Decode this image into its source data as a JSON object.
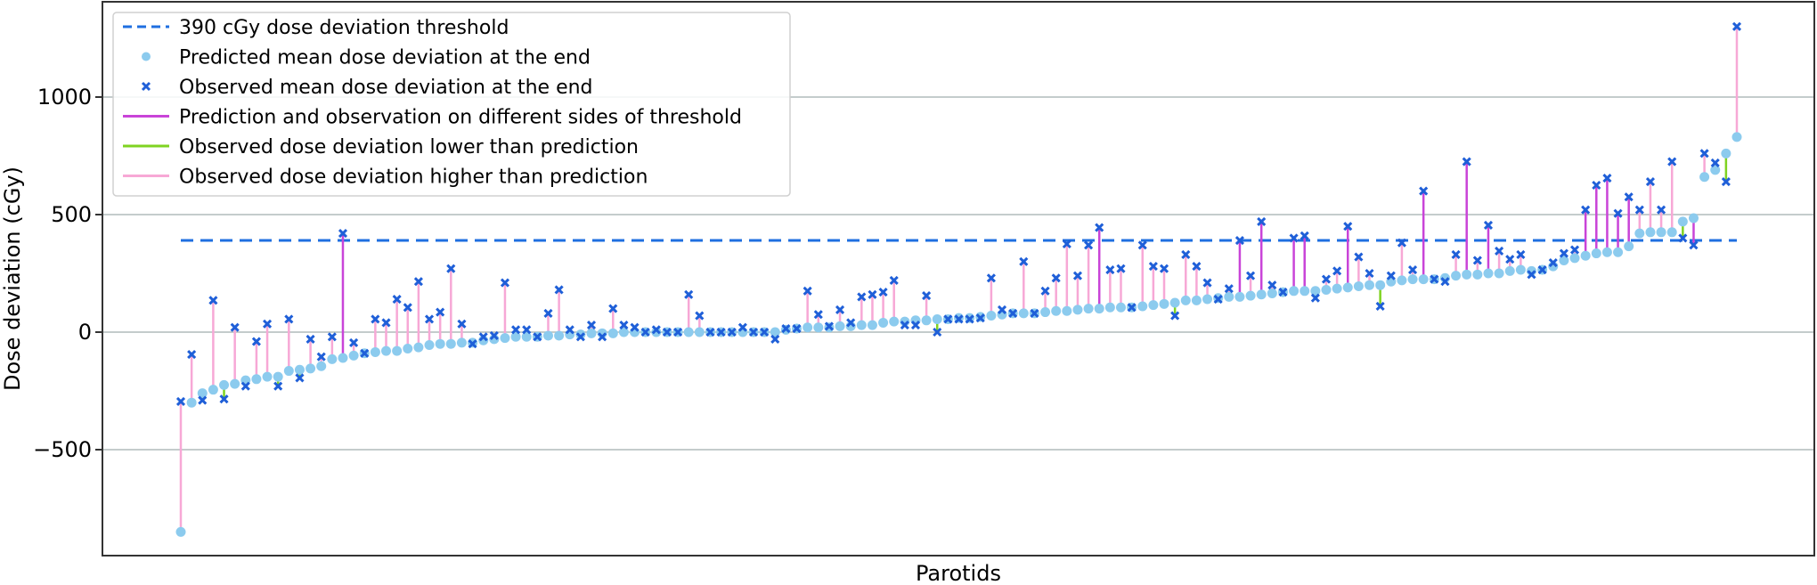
{
  "chart_data": {
    "type": "scatter",
    "title": "",
    "xlabel": "Parotids",
    "ylabel": "Dose deviation (cGy)",
    "ylim": [
      -951,
      1405
    ],
    "yticks": [
      -500,
      0,
      500,
      1000
    ],
    "ytick_labels": [
      "−500",
      "0",
      "500",
      "1000"
    ],
    "grid": "horizontal",
    "legend_position": "upper left",
    "threshold": 390,
    "colors": {
      "threshold": "#1f6fe0",
      "predicted": "#8ccbee",
      "observed": "#1f5fd8",
      "different_sides": "#c944d8",
      "lower": "#7fd321",
      "higher": "#f7a8d6",
      "grid": "#b0bcbc",
      "axis": "#333333"
    },
    "legend": [
      {
        "key": "threshold",
        "label": "390 cGy dose deviation threshold",
        "style": "dashed-line"
      },
      {
        "key": "predicted",
        "label": "Predicted mean dose deviation at the end",
        "style": "dot"
      },
      {
        "key": "observed",
        "label": "Observed mean dose deviation at the end",
        "style": "x"
      },
      {
        "key": "different_sides",
        "label": "Prediction and observation on different sides of threshold",
        "style": "line"
      },
      {
        "key": "lower",
        "label": "Observed dose deviation lower than prediction",
        "style": "line"
      },
      {
        "key": "higher",
        "label": "Observed dose deviation higher than prediction",
        "style": "line"
      }
    ],
    "series": [
      {
        "name": "Predicted mean dose deviation at the end",
        "values": [
          -850,
          -300,
          -260,
          -245,
          -225,
          -220,
          -205,
          -200,
          -190,
          -190,
          -165,
          -160,
          -155,
          -145,
          -115,
          -110,
          -100,
          -90,
          -85,
          -80,
          -80,
          -70,
          -65,
          -55,
          -50,
          -50,
          -45,
          -45,
          -35,
          -30,
          -25,
          -20,
          -20,
          -20,
          -15,
          -15,
          -10,
          -10,
          -5,
          -5,
          -5,
          0,
          0,
          0,
          0,
          0,
          0,
          0,
          0,
          0,
          0,
          0,
          0,
          0,
          0,
          0,
          10,
          15,
          20,
          20,
          20,
          25,
          25,
          30,
          30,
          40,
          45,
          45,
          50,
          50,
          55,
          55,
          60,
          60,
          65,
          70,
          75,
          80,
          80,
          80,
          85,
          90,
          90,
          95,
          100,
          100,
          105,
          105,
          105,
          110,
          115,
          120,
          125,
          135,
          135,
          140,
          145,
          150,
          150,
          155,
          160,
          165,
          170,
          175,
          175,
          175,
          180,
          185,
          190,
          195,
          200,
          200,
          215,
          220,
          225,
          225,
          225,
          230,
          240,
          245,
          245,
          250,
          250,
          260,
          265,
          260,
          265,
          280,
          305,
          315,
          325,
          335,
          340,
          340,
          365,
          420,
          425,
          425,
          425,
          470,
          485,
          660,
          690,
          760,
          830
        ]
      },
      {
        "name": "Observed mean dose deviation at the end",
        "values": [
          -295,
          -95,
          -290,
          135,
          -285,
          20,
          -230,
          -40,
          35,
          -230,
          55,
          -195,
          -30,
          -105,
          -20,
          420,
          -45,
          -90,
          55,
          40,
          140,
          105,
          215,
          55,
          85,
          270,
          35,
          -50,
          -20,
          -15,
          210,
          10,
          10,
          -20,
          80,
          180,
          10,
          -20,
          30,
          -20,
          100,
          30,
          20,
          0,
          10,
          0,
          0,
          160,
          70,
          0,
          0,
          0,
          20,
          0,
          0,
          -30,
          15,
          15,
          175,
          75,
          25,
          95,
          40,
          150,
          160,
          170,
          220,
          30,
          30,
          155,
          0,
          55,
          55,
          55,
          60,
          230,
          95,
          80,
          300,
          80,
          175,
          230,
          375,
          240,
          370,
          445,
          265,
          270,
          105,
          370,
          280,
          270,
          70,
          330,
          280,
          210,
          140,
          185,
          390,
          240,
          470,
          200,
          170,
          400,
          410,
          145,
          225,
          260,
          450,
          320,
          250,
          110,
          240,
          380,
          265,
          600,
          225,
          215,
          330,
          725,
          305,
          455,
          345,
          310,
          330,
          245,
          265,
          295,
          335,
          350,
          520,
          625,
          655,
          505,
          575,
          520,
          640,
          520,
          725,
          400,
          370,
          760,
          720,
          640,
          1300
        ]
      }
    ]
  }
}
